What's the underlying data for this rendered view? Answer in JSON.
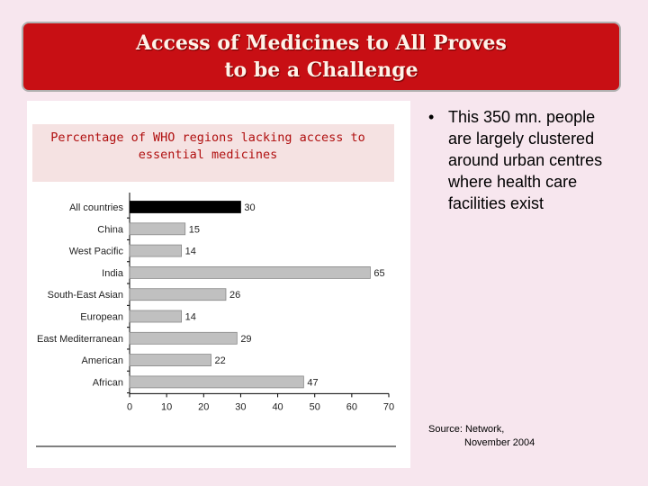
{
  "slide": {
    "title_line1": "Access of Medicines to All Proves",
    "title_line2": "to be a Challenge",
    "bullet": "This 350 mn. people are largely clustered around urban centres where health care facilities exist",
    "source_line1": "Source: Network,",
    "source_line2": "November 2004"
  },
  "colors": {
    "banner": "#c80f14",
    "background": "#f7e6ee",
    "highlight_bar": "#000000",
    "bar": "#c0c0c0"
  },
  "chart_data": {
    "type": "bar",
    "orientation": "horizontal",
    "title": "Percentage of WHO regions lacking access to essential medicines",
    "categories": [
      "All countries",
      "China",
      "West Pacific",
      "India",
      "South-East Asian",
      "European",
      "East Mediterranean",
      "American",
      "African"
    ],
    "values": [
      30,
      15,
      14,
      65,
      26,
      14,
      29,
      22,
      47
    ],
    "highlight": [
      "All countries"
    ],
    "xlim": [
      0,
      70
    ],
    "xticks": [
      0,
      10,
      20,
      30,
      40,
      50,
      60,
      70
    ],
    "xlabel": "",
    "ylabel": "",
    "grid": false
  }
}
